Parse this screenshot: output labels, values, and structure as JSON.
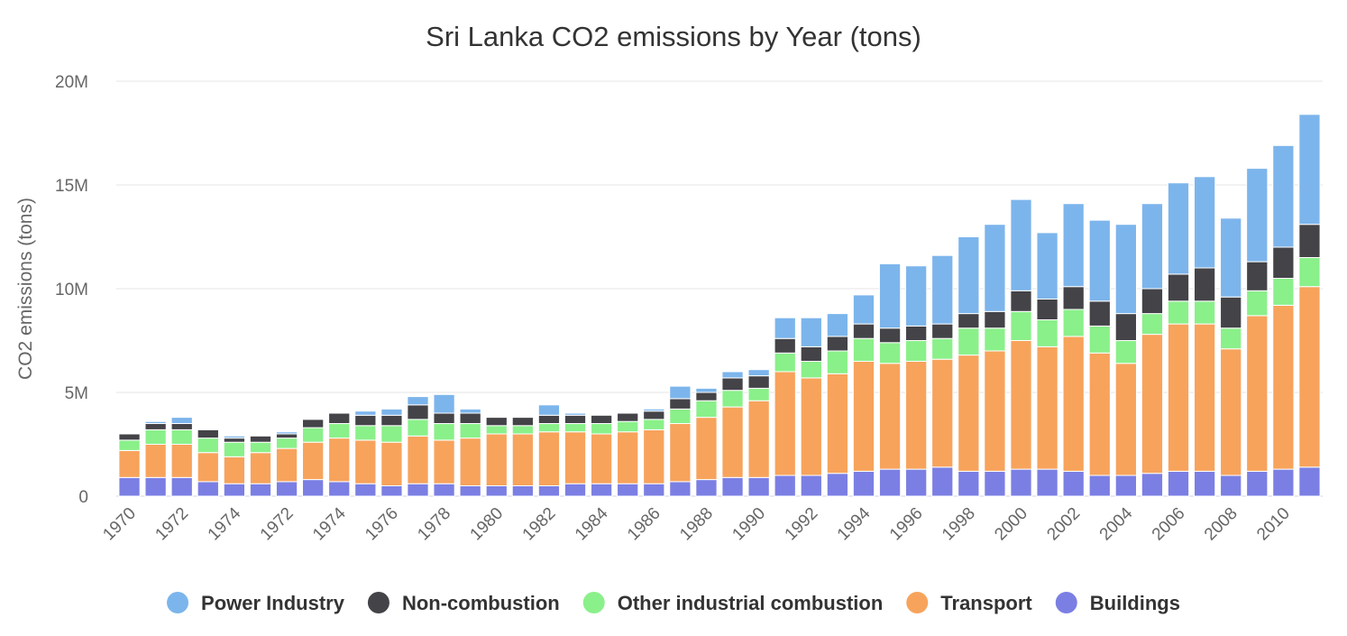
{
  "chart_data": {
    "type": "bar",
    "stacked": true,
    "title": "Sri Lanka CO2 emissions by Year (tons)",
    "ylabel": "CO2 emissions (tons)",
    "xlabel": "",
    "ylim": [
      0,
      20000000
    ],
    "yticks": [
      0,
      5000000,
      10000000,
      15000000,
      20000000
    ],
    "ytick_labels": [
      "0",
      "5M",
      "10M",
      "15M",
      "20M"
    ],
    "grid": true,
    "legend_position": "bottom",
    "categories": [
      "1970",
      "1971",
      "1972",
      "1973",
      "1974",
      "1975",
      "1972",
      "1977",
      "1974",
      "1979",
      "1976",
      "1981",
      "1978",
      "1983",
      "1980",
      "1985",
      "1982",
      "1987",
      "1984",
      "1989",
      "1986",
      "1991",
      "1988",
      "1993",
      "1990",
      "1995",
      "1992",
      "1997",
      "1994",
      "1999",
      "1996",
      "2001",
      "1998",
      "2003",
      "2000",
      "2005",
      "2002",
      "2007",
      "2004",
      "2009",
      "2006",
      "2011",
      "2008",
      "2013",
      "2010",
      "2015"
    ],
    "visible_tick_indices": [
      0,
      2,
      4,
      6,
      8,
      10,
      12,
      14,
      16,
      18,
      20,
      22,
      24,
      26,
      28,
      30,
      32,
      34,
      36,
      38,
      40,
      42,
      44
    ],
    "series": [
      {
        "name": "Buildings",
        "color": "#7b7fe3",
        "values": [
          900000,
          900000,
          900000,
          700000,
          600000,
          600000,
          700000,
          800000,
          700000,
          600000,
          500000,
          600000,
          600000,
          500000,
          500000,
          500000,
          500000,
          600000,
          600000,
          600000,
          600000,
          700000,
          800000,
          900000,
          900000,
          1000000,
          1000000,
          1100000,
          1200000,
          1300000,
          1300000,
          1400000,
          1200000,
          1200000,
          1300000,
          1300000,
          1200000,
          1000000,
          1000000,
          1100000,
          1200000,
          1200000,
          1000000,
          1200000,
          1300000,
          1400000
        ]
      },
      {
        "name": "Transport",
        "color": "#f7a35c",
        "values": [
          1300000,
          1600000,
          1600000,
          1400000,
          1300000,
          1500000,
          1600000,
          1800000,
          2100000,
          2100000,
          2100000,
          2300000,
          2100000,
          2300000,
          2500000,
          2500000,
          2600000,
          2500000,
          2400000,
          2500000,
          2600000,
          2800000,
          3000000,
          3400000,
          3700000,
          5000000,
          4700000,
          4800000,
          5300000,
          5100000,
          5200000,
          5200000,
          5600000,
          5800000,
          6200000,
          5900000,
          6500000,
          5900000,
          5400000,
          6700000,
          7100000,
          7100000,
          6100000,
          7500000,
          7900000,
          8700000
        ]
      },
      {
        "name": "Other industrial combustion",
        "color": "#8af08a",
        "values": [
          500000,
          700000,
          700000,
          700000,
          700000,
          500000,
          500000,
          700000,
          700000,
          700000,
          800000,
          800000,
          800000,
          700000,
          400000,
          400000,
          400000,
          400000,
          500000,
          500000,
          500000,
          700000,
          800000,
          800000,
          600000,
          900000,
          800000,
          1100000,
          1100000,
          1000000,
          1000000,
          1000000,
          1300000,
          1100000,
          1400000,
          1300000,
          1300000,
          1300000,
          1100000,
          1000000,
          1100000,
          1100000,
          1000000,
          1200000,
          1300000,
          1400000
        ]
      },
      {
        "name": "Non-combustion",
        "color": "#434348",
        "values": [
          300000,
          300000,
          300000,
          400000,
          200000,
          300000,
          200000,
          400000,
          500000,
          500000,
          500000,
          700000,
          500000,
          500000,
          400000,
          400000,
          400000,
          400000,
          400000,
          400000,
          400000,
          500000,
          400000,
          600000,
          600000,
          700000,
          700000,
          700000,
          700000,
          700000,
          700000,
          700000,
          700000,
          800000,
          1000000,
          1000000,
          1100000,
          1200000,
          1300000,
          1200000,
          1300000,
          1600000,
          1500000,
          1400000,
          1500000,
          1600000
        ]
      },
      {
        "name": "Power Industry",
        "color": "#7cb5ec",
        "values": [
          0,
          100000,
          300000,
          0,
          100000,
          0,
          100000,
          0,
          0,
          200000,
          300000,
          400000,
          900000,
          200000,
          0,
          0,
          500000,
          100000,
          0,
          0,
          100000,
          600000,
          200000,
          300000,
          300000,
          1000000,
          1400000,
          1100000,
          1400000,
          3100000,
          2900000,
          3300000,
          3700000,
          4200000,
          4400000,
          3200000,
          4000000,
          3900000,
          4300000,
          4100000,
          4400000,
          4400000,
          3800000,
          4500000,
          4900000,
          5300000
        ]
      }
    ]
  }
}
